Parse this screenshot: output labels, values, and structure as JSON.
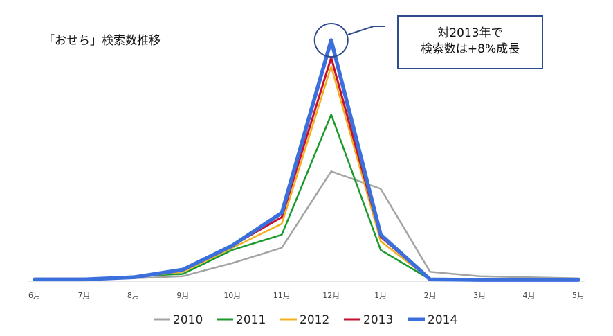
{
  "chart_data": {
    "type": "line",
    "title": "「おせち」検索数推移",
    "categories": [
      "6月",
      "7月",
      "8月",
      "9月",
      "10月",
      "11月",
      "12月",
      "1月",
      "2月",
      "3月",
      "4月",
      "5月"
    ],
    "series": [
      {
        "name": "2010",
        "color": "#a3a3a3",
        "values": [
          1,
          1,
          1,
          2,
          8,
          15,
          50,
          42,
          4,
          2,
          1.5,
          1
        ]
      },
      {
        "name": "2011",
        "color": "#1a9a2a",
        "values": [
          0.5,
          0.5,
          2,
          3,
          14,
          21,
          76,
          14,
          0.5,
          0.3,
          0.3,
          0.3
        ]
      },
      {
        "name": "2012",
        "color": "#f2b01e",
        "values": [
          0.5,
          0.5,
          1.5,
          4,
          15,
          26,
          98,
          18,
          0.5,
          0.3,
          0.3,
          0.3
        ]
      },
      {
        "name": "2013",
        "color": "#c8102e",
        "values": [
          0.5,
          0.5,
          1.5,
          5,
          16,
          29,
          102,
          20,
          0.5,
          0.3,
          0.3,
          0.3
        ]
      },
      {
        "name": "2014",
        "color": "#3b6fdc",
        "values": [
          0.5,
          0.5,
          1.5,
          5,
          16,
          31,
          110,
          21,
          0.5,
          0.3,
          0.3,
          0.3
        ]
      }
    ],
    "ylim": [
      0,
      110
    ],
    "grid": false,
    "legend": "bottom",
    "annotation": {
      "line1": "対2013年で",
      "line2": "検索数は+8%成長",
      "target": "12月"
    }
  }
}
